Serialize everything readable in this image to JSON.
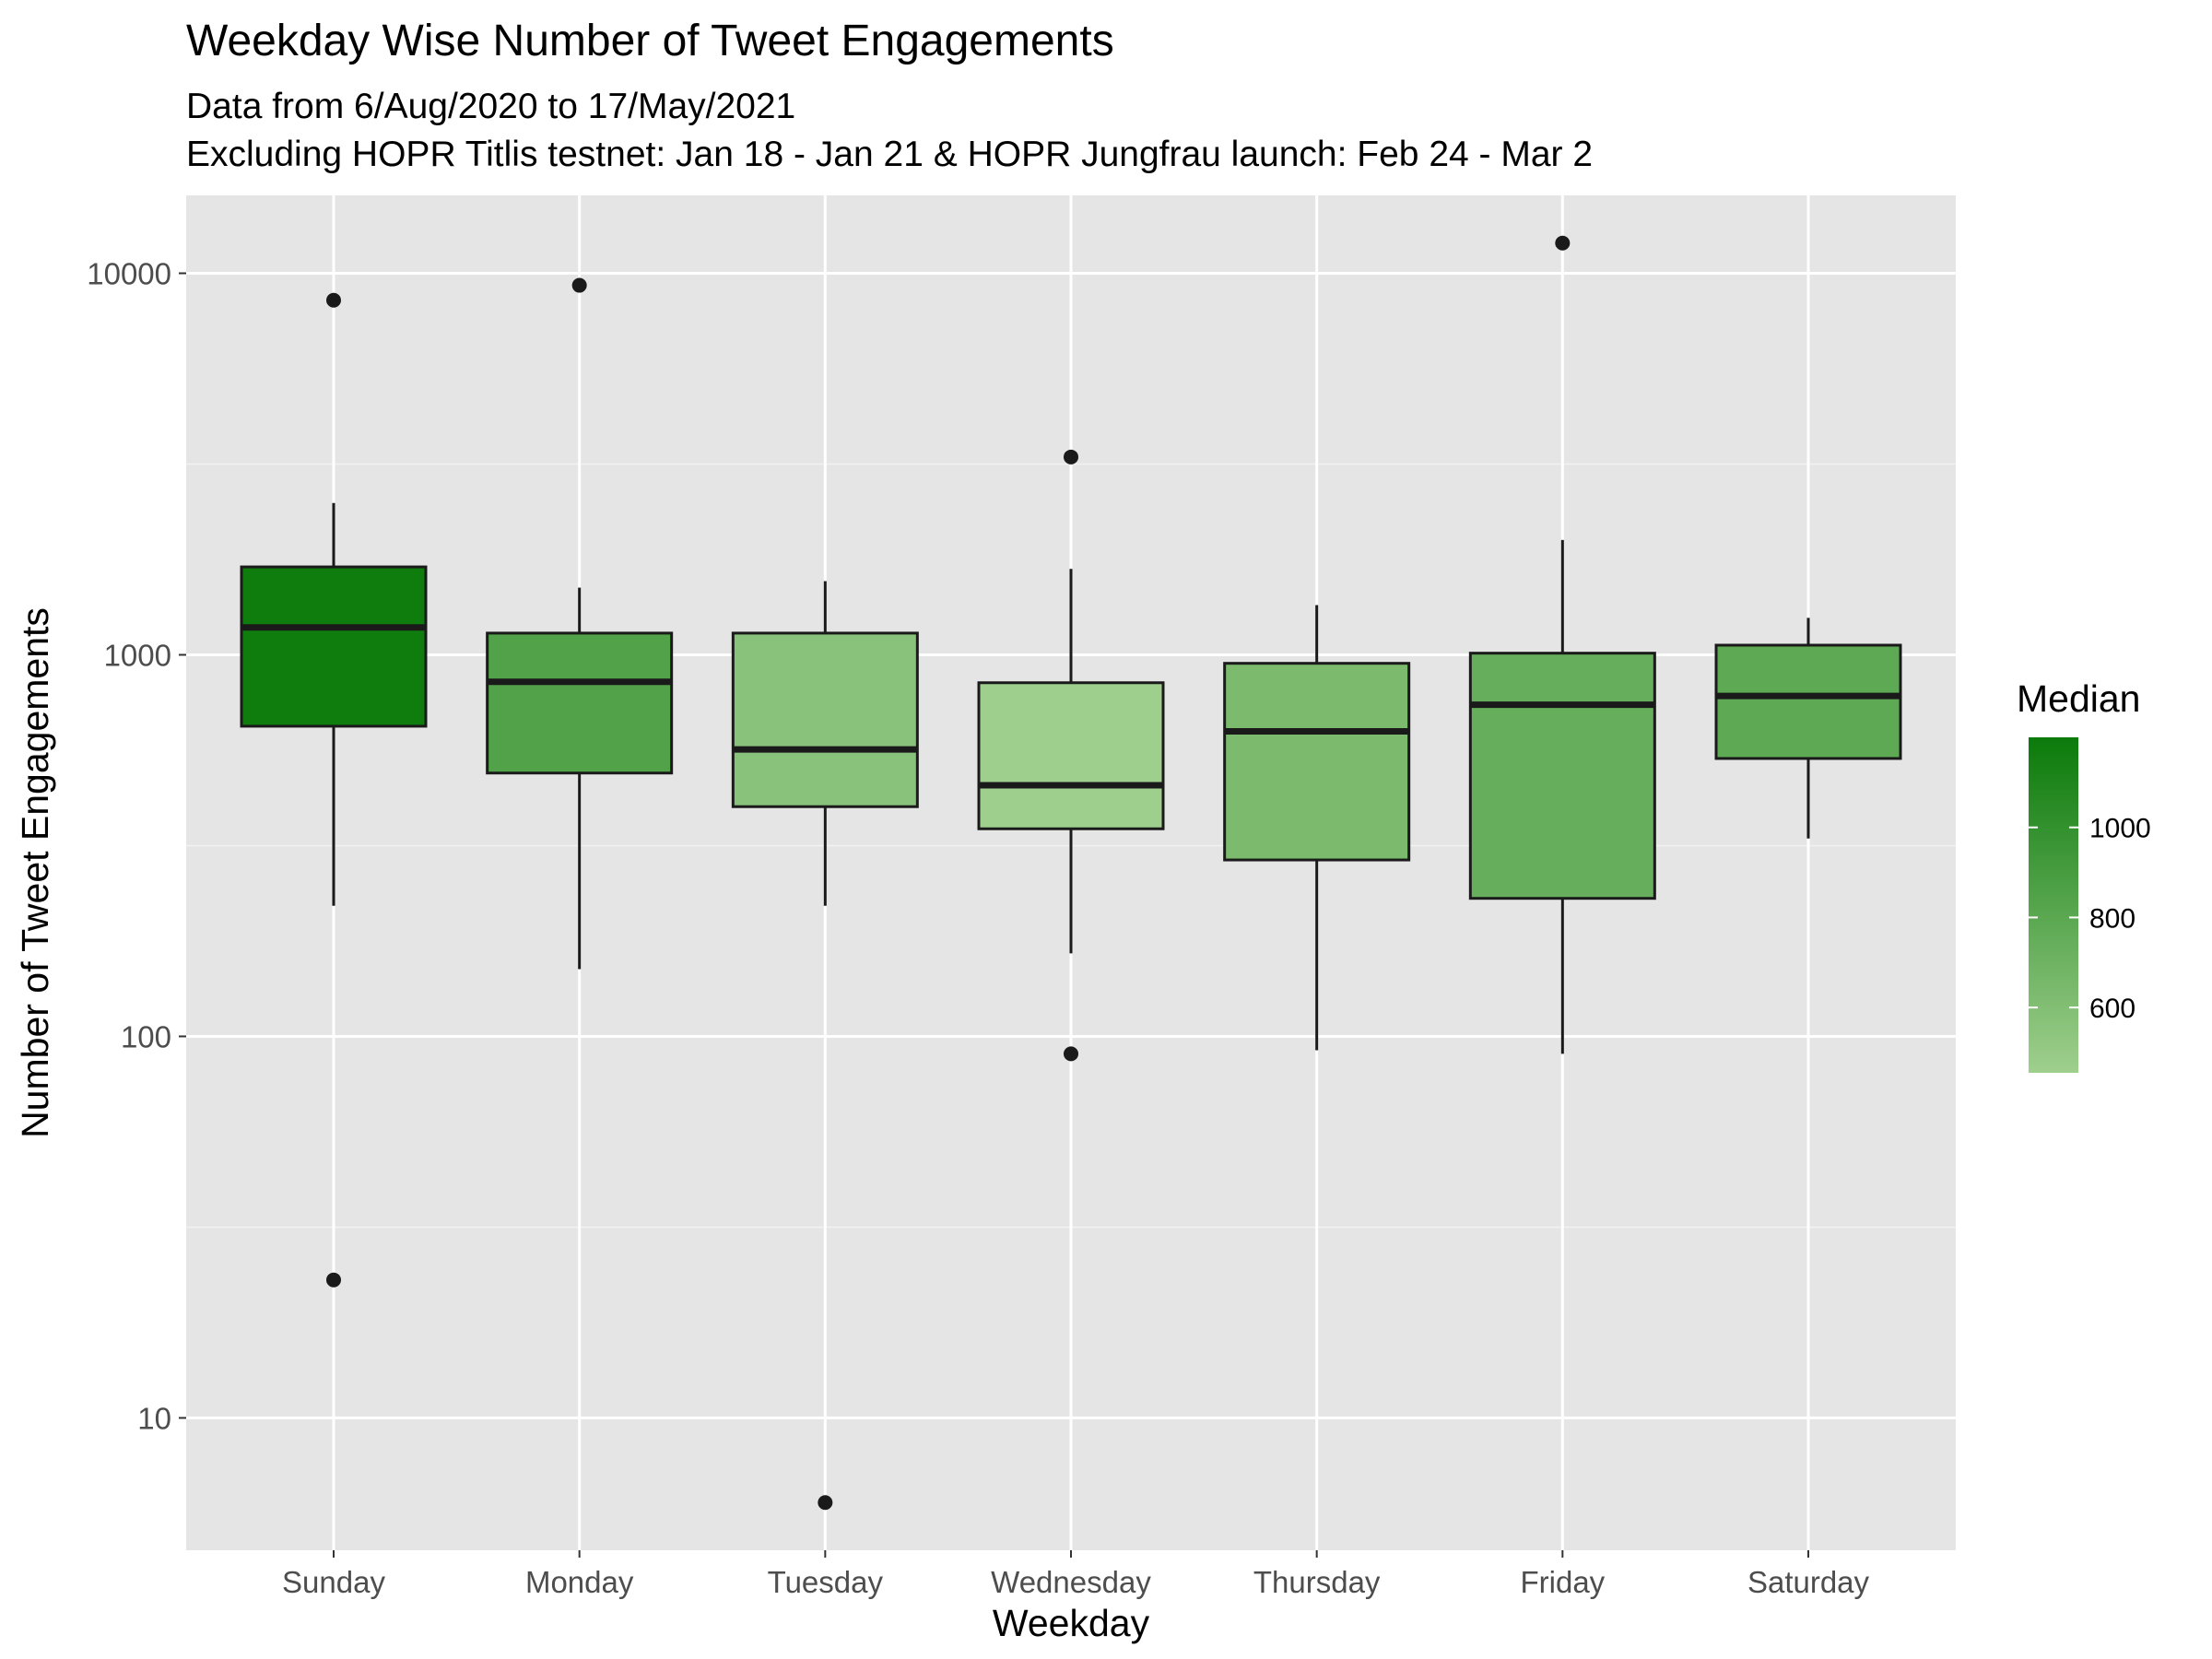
{
  "chart_data": {
    "type": "box",
    "title": "Weekday Wise Number of Tweet Engagements",
    "subtitle_lines": [
      "Data from 6/Aug/2020 to 17/May/2021",
      "Excluding HOPR Titlis testnet: Jan 18 - Jan 21 & HOPR Jungfrau launch: Feb 24 - Mar 2"
    ],
    "xlabel": "Weekday",
    "ylabel": "Number of Tweet Engagements",
    "y_scale": "log10",
    "ylim": [
      4.5,
      16000
    ],
    "y_ticks": [
      10,
      100,
      1000,
      10000
    ],
    "y_tick_labels": [
      "10",
      "100",
      "1000",
      "10000"
    ],
    "grid": true,
    "legend": {
      "title": "Median",
      "position": "right",
      "type": "colorbar",
      "range": [
        455,
        1200
      ],
      "ticks": [
        600,
        800,
        1000
      ],
      "tick_labels": [
        "600",
        "800",
        "1000"
      ],
      "low_color": "#9fcf8d",
      "high_color": "#0b7a0b"
    },
    "categories": [
      "Sunday",
      "Monday",
      "Tuesday",
      "Wednesday",
      "Thursday",
      "Friday",
      "Saturday"
    ],
    "boxes": [
      {
        "category": "Sunday",
        "whisker_low": 220,
        "q1": 650,
        "median": 1180,
        "q3": 1700,
        "whisker_high": 2500,
        "outliers": [
          23,
          8500
        ]
      },
      {
        "category": "Monday",
        "whisker_low": 150,
        "q1": 490,
        "median": 850,
        "q3": 1140,
        "whisker_high": 1500,
        "outliers": [
          9300
        ]
      },
      {
        "category": "Tuesday",
        "whisker_low": 220,
        "q1": 400,
        "median": 565,
        "q3": 1140,
        "whisker_high": 1560,
        "outliers": [
          6
        ]
      },
      {
        "category": "Wednesday",
        "whisker_low": 165,
        "q1": 350,
        "median": 455,
        "q3": 845,
        "whisker_high": 1680,
        "outliers": [
          90,
          3300
        ]
      },
      {
        "category": "Thursday",
        "whisker_low": 92,
        "q1": 290,
        "median": 630,
        "q3": 950,
        "whisker_high": 1350,
        "outliers": []
      },
      {
        "category": "Friday",
        "whisker_low": 90,
        "q1": 230,
        "median": 740,
        "q3": 1010,
        "whisker_high": 2000,
        "outliers": [
          12000
        ]
      },
      {
        "category": "Saturday",
        "whisker_low": 330,
        "q1": 535,
        "median": 780,
        "q3": 1060,
        "whisker_high": 1250,
        "outliers": []
      }
    ]
  }
}
